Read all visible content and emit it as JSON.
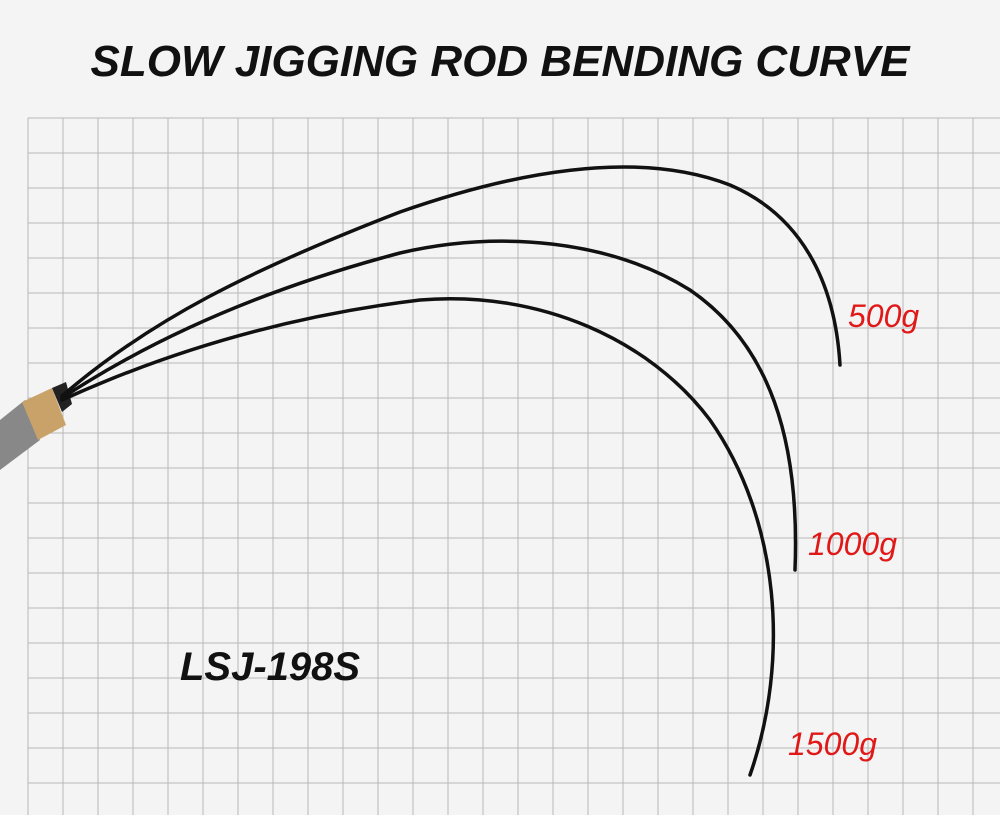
{
  "header": {
    "title": "SLOW JIGGING ROD BENDING CURVE"
  },
  "model": "LSJ-198S",
  "loads": [
    "500g",
    "1000g",
    "1500g"
  ]
}
